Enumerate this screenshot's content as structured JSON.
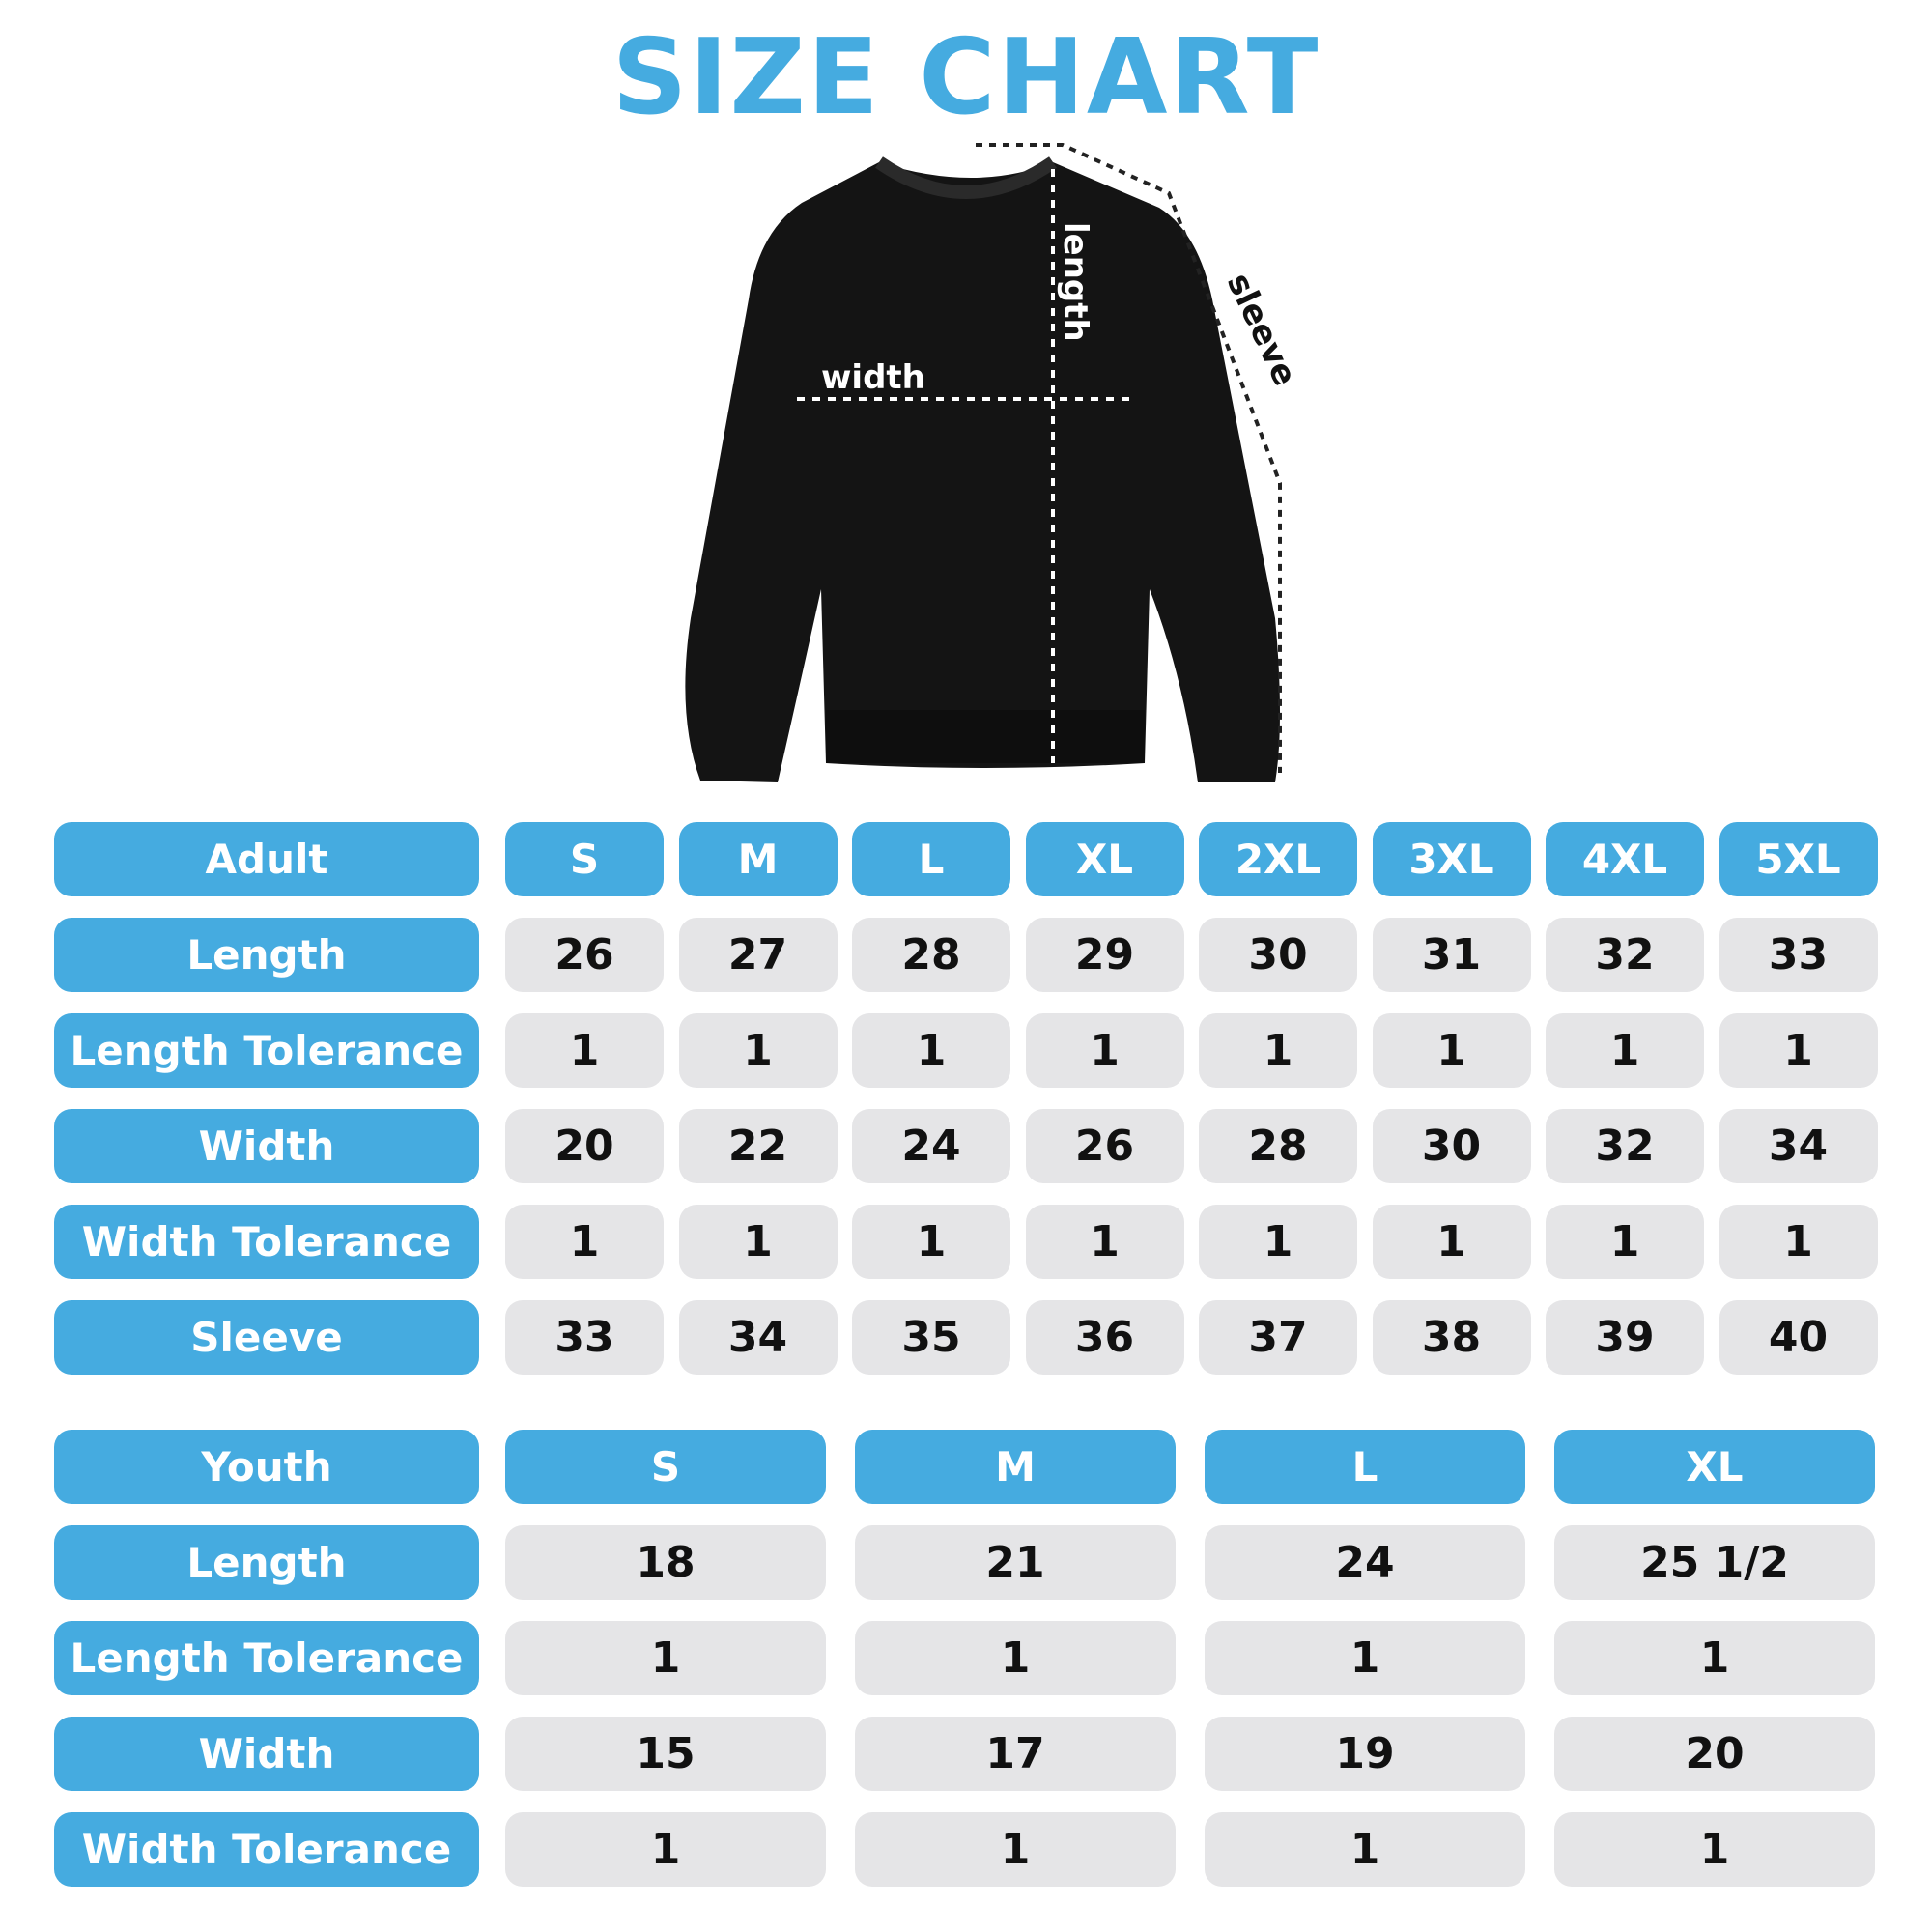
{
  "title": "SIZE CHART",
  "diagram": {
    "length_label": "length",
    "width_label": "width",
    "sleeve_label": "sleeve"
  },
  "colors": {
    "accent": "#45abe0",
    "cell": "#e5e5e7"
  },
  "adult": {
    "header": "Adult",
    "sizes": [
      "S",
      "M",
      "L",
      "XL",
      "2XL",
      "3XL",
      "4XL",
      "5XL"
    ],
    "rows": [
      {
        "label": "Length",
        "values": [
          "26",
          "27",
          "28",
          "29",
          "30",
          "31",
          "32",
          "33"
        ]
      },
      {
        "label": "Length Tolerance",
        "values": [
          "1",
          "1",
          "1",
          "1",
          "1",
          "1",
          "1",
          "1"
        ]
      },
      {
        "label": "Width",
        "values": [
          "20",
          "22",
          "24",
          "26",
          "28",
          "30",
          "32",
          "34"
        ]
      },
      {
        "label": "Width Tolerance",
        "values": [
          "1",
          "1",
          "1",
          "1",
          "1",
          "1",
          "1",
          "1"
        ]
      },
      {
        "label": "Sleeve",
        "values": [
          "33",
          "34",
          "35",
          "36",
          "37",
          "38",
          "39",
          "40"
        ]
      }
    ]
  },
  "youth": {
    "header": "Youth",
    "sizes": [
      "S",
      "M",
      "L",
      "XL"
    ],
    "rows": [
      {
        "label": "Length",
        "values": [
          "18",
          "21",
          "24",
          "25 1/2"
        ]
      },
      {
        "label": "Length Tolerance",
        "values": [
          "1",
          "1",
          "1",
          "1"
        ]
      },
      {
        "label": "Width",
        "values": [
          "15",
          "17",
          "19",
          "20"
        ]
      },
      {
        "label": "Width Tolerance",
        "values": [
          "1",
          "1",
          "1",
          "1"
        ]
      }
    ]
  }
}
